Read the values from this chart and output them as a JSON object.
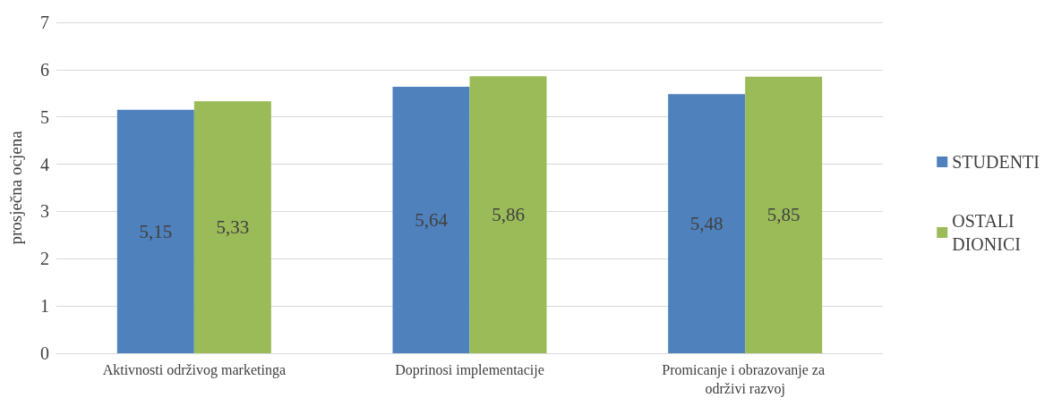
{
  "chart_data": {
    "type": "bar",
    "ylabel": "prosječna ocjena",
    "categories": [
      "Aktivnosti održivog marketinga",
      "Doprinosi implementacije",
      "Promicanje i obrazovanje za održivi razvoj"
    ],
    "series": [
      {
        "name": "STUDENTI",
        "color": "#4f81bd",
        "values": [
          5.15,
          5.64,
          5.48
        ],
        "value_labels": [
          "5,15",
          "5,64",
          "5,48"
        ]
      },
      {
        "name": "OSTALI DIONICI",
        "color": "#9bbb59",
        "values": [
          5.33,
          5.86,
          5.85
        ],
        "value_labels": [
          "5,33",
          "5,86",
          "5,85"
        ]
      }
    ],
    "ylim": [
      0,
      7
    ],
    "yticks": [
      0,
      1,
      2,
      3,
      4,
      5,
      6,
      7
    ],
    "grid": "y",
    "legend": "right"
  }
}
